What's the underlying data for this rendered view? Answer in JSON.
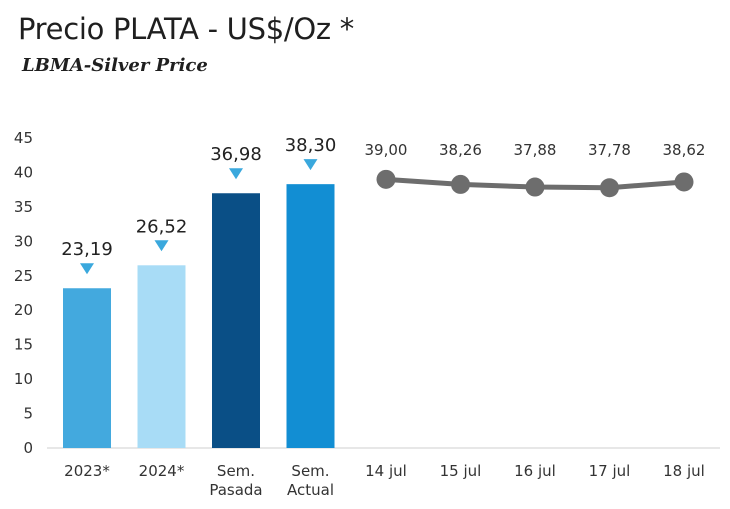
{
  "header": {
    "title": "Precio PLATA - US$/Oz *",
    "subtitle": "LBMA-Silver Price"
  },
  "chart_data": {
    "type": "bar",
    "title": "Precio PLATA - US$/Oz *",
    "subtitle": "LBMA-Silver Price",
    "ylim": [
      0,
      45
    ],
    "yticks": [
      "0",
      "5",
      "10",
      "15",
      "20",
      "25",
      "30",
      "35",
      "40",
      "45"
    ],
    "grid": false,
    "bars": {
      "categories": [
        [
          "2023*"
        ],
        [
          "2024*"
        ],
        [
          "Sem.",
          "Pasada"
        ],
        [
          "Sem.",
          "Actual"
        ]
      ],
      "values": [
        23.19,
        26.52,
        36.98,
        38.3
      ],
      "labels": [
        "23,19",
        "26,52",
        "36,98",
        "38,30"
      ],
      "colors": [
        "#43a9de",
        "#a8dcf6",
        "#0a4f86",
        "#128ed3"
      ],
      "marker_color": "#3aa8dd"
    },
    "line": {
      "type": "line",
      "categories": [
        "14 jul",
        "15 jul",
        "16 jul",
        "17 jul",
        "18 jul"
      ],
      "values": [
        39.0,
        38.26,
        37.88,
        37.78,
        38.62
      ],
      "labels": [
        "39,00",
        "38,26",
        "37,88",
        "37,78",
        "38,62"
      ],
      "color": "#6d6d6d"
    }
  }
}
